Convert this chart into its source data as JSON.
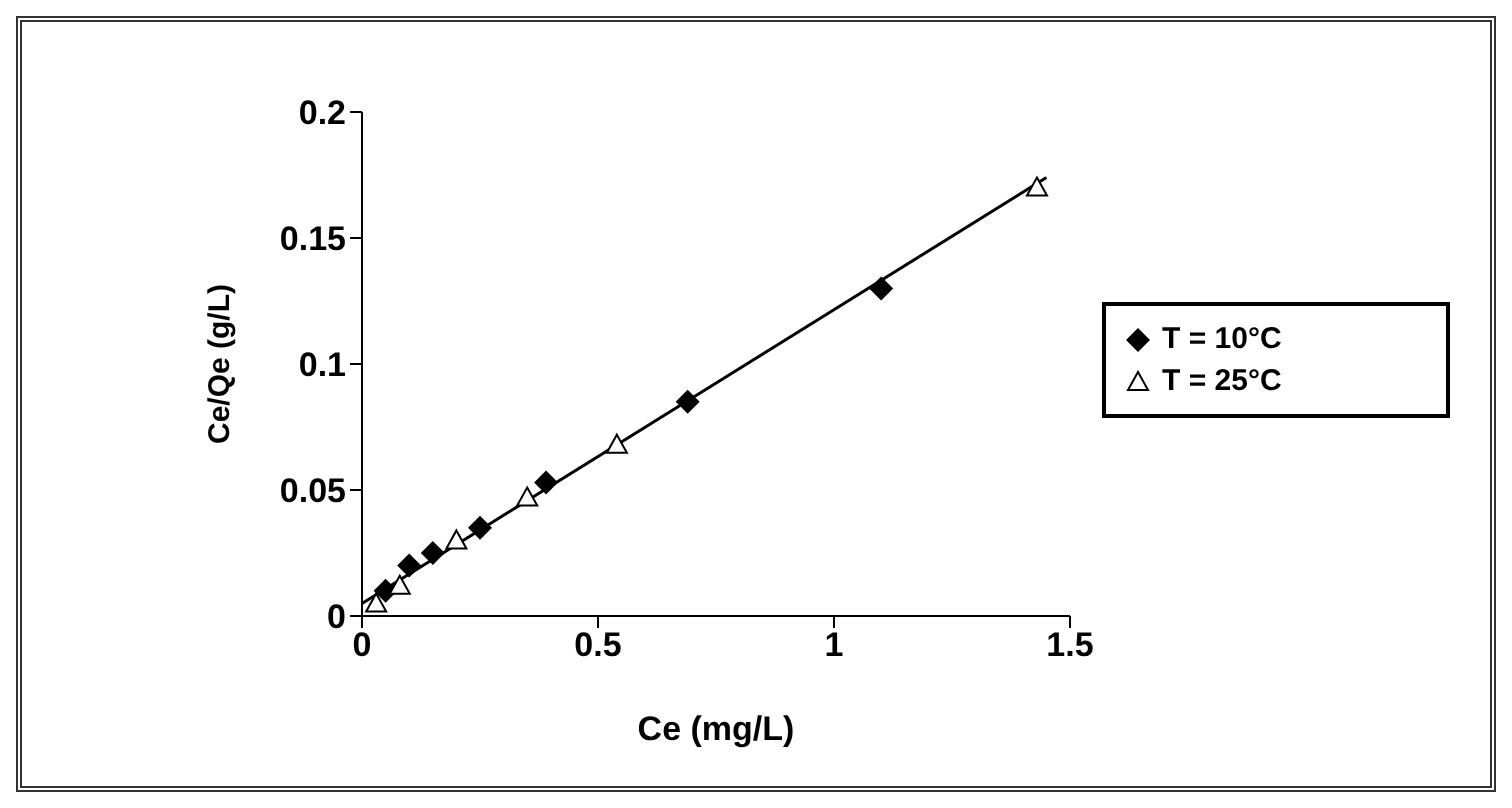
{
  "chart_data": {
    "type": "scatter",
    "xlabel": "Ce (mg/L)",
    "ylabel": "Ce/Qe (g/L)",
    "xlim": [
      0,
      1.5
    ],
    "xticks": [
      0,
      0.5,
      1,
      1.5
    ],
    "ylim": [
      0,
      0.2
    ],
    "yticks": [
      0,
      0.05,
      0.1,
      0.15,
      0.2
    ],
    "grid": false,
    "legend": "right",
    "series": [
      {
        "name": "T = 10°C",
        "color": "#000000",
        "marker": "diamond",
        "x": [
          0.05,
          0.1,
          0.15,
          0.25,
          0.39,
          0.69,
          1.1
        ],
        "values": [
          0.01,
          0.02,
          0.025,
          0.035,
          0.053,
          0.085,
          0.13
        ]
      },
      {
        "name": "T = 25°C",
        "color": "#000000",
        "marker": "triangle",
        "x": [
          0.03,
          0.08,
          0.2,
          0.35,
          0.54,
          1.43
        ],
        "values": [
          0.005,
          0.012,
          0.03,
          0.047,
          0.068,
          0.17
        ]
      },
      {
        "type": "line",
        "color": "#000000",
        "marker": "none",
        "x": [
          0,
          1.45
        ],
        "values": [
          0.005,
          0.174
        ]
      }
    ]
  }
}
